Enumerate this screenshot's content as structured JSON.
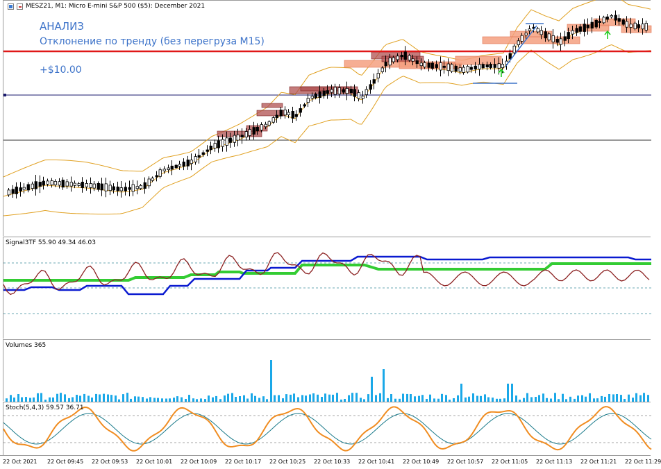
{
  "header": {
    "symbol_title": "MESZ21, M1:  Micro E-mini S&P 500 ($5): December 2021"
  },
  "overlay": {
    "analysis_label": "АНАЛИЗ",
    "trend_label": "Отклонение по тренду (без перегруза М15)",
    "profit_label": "+$10.00"
  },
  "indicators": {
    "signal_title": "Signal3TF 55.90 49.34 46.03",
    "volumes_title": "Volumes 365",
    "stoch_title": "Stoch(5,4,3) 59.57 36.71"
  },
  "colors": {
    "candle": "#000000",
    "bollinger": "#e0a020",
    "resistance_line": "#e01818",
    "horizontal_line": "#1a1a6e",
    "zone_light": "#f4a080",
    "zone_dark": "#b05050",
    "arrow_up": "#22cc22",
    "trend_line": "#3d73c9",
    "signal_blue": "#0a1ad0",
    "signal_green": "#33cc33",
    "signal_red": "#8b2020",
    "volume_bar": "#1aa8e8",
    "stoch_main": "#f08c20",
    "stoch_signal": "#1a7a8a"
  },
  "time_axis": {
    "labels": [
      "22 Oct 2021",
      "22 Oct 09:45",
      "22 Oct 09:53",
      "22 Oct 10:01",
      "22 Oct 10:09",
      "22 Oct 10:17",
      "22 Oct 10:25",
      "22 Oct 10:33",
      "22 Oct 10:41",
      "22 Oct 10:49",
      "22 Oct 10:57",
      "22 Oct 11:05",
      "22 Oct 11:13",
      "22 Oct 11:21",
      "22 Oct 11:29"
    ]
  }
}
